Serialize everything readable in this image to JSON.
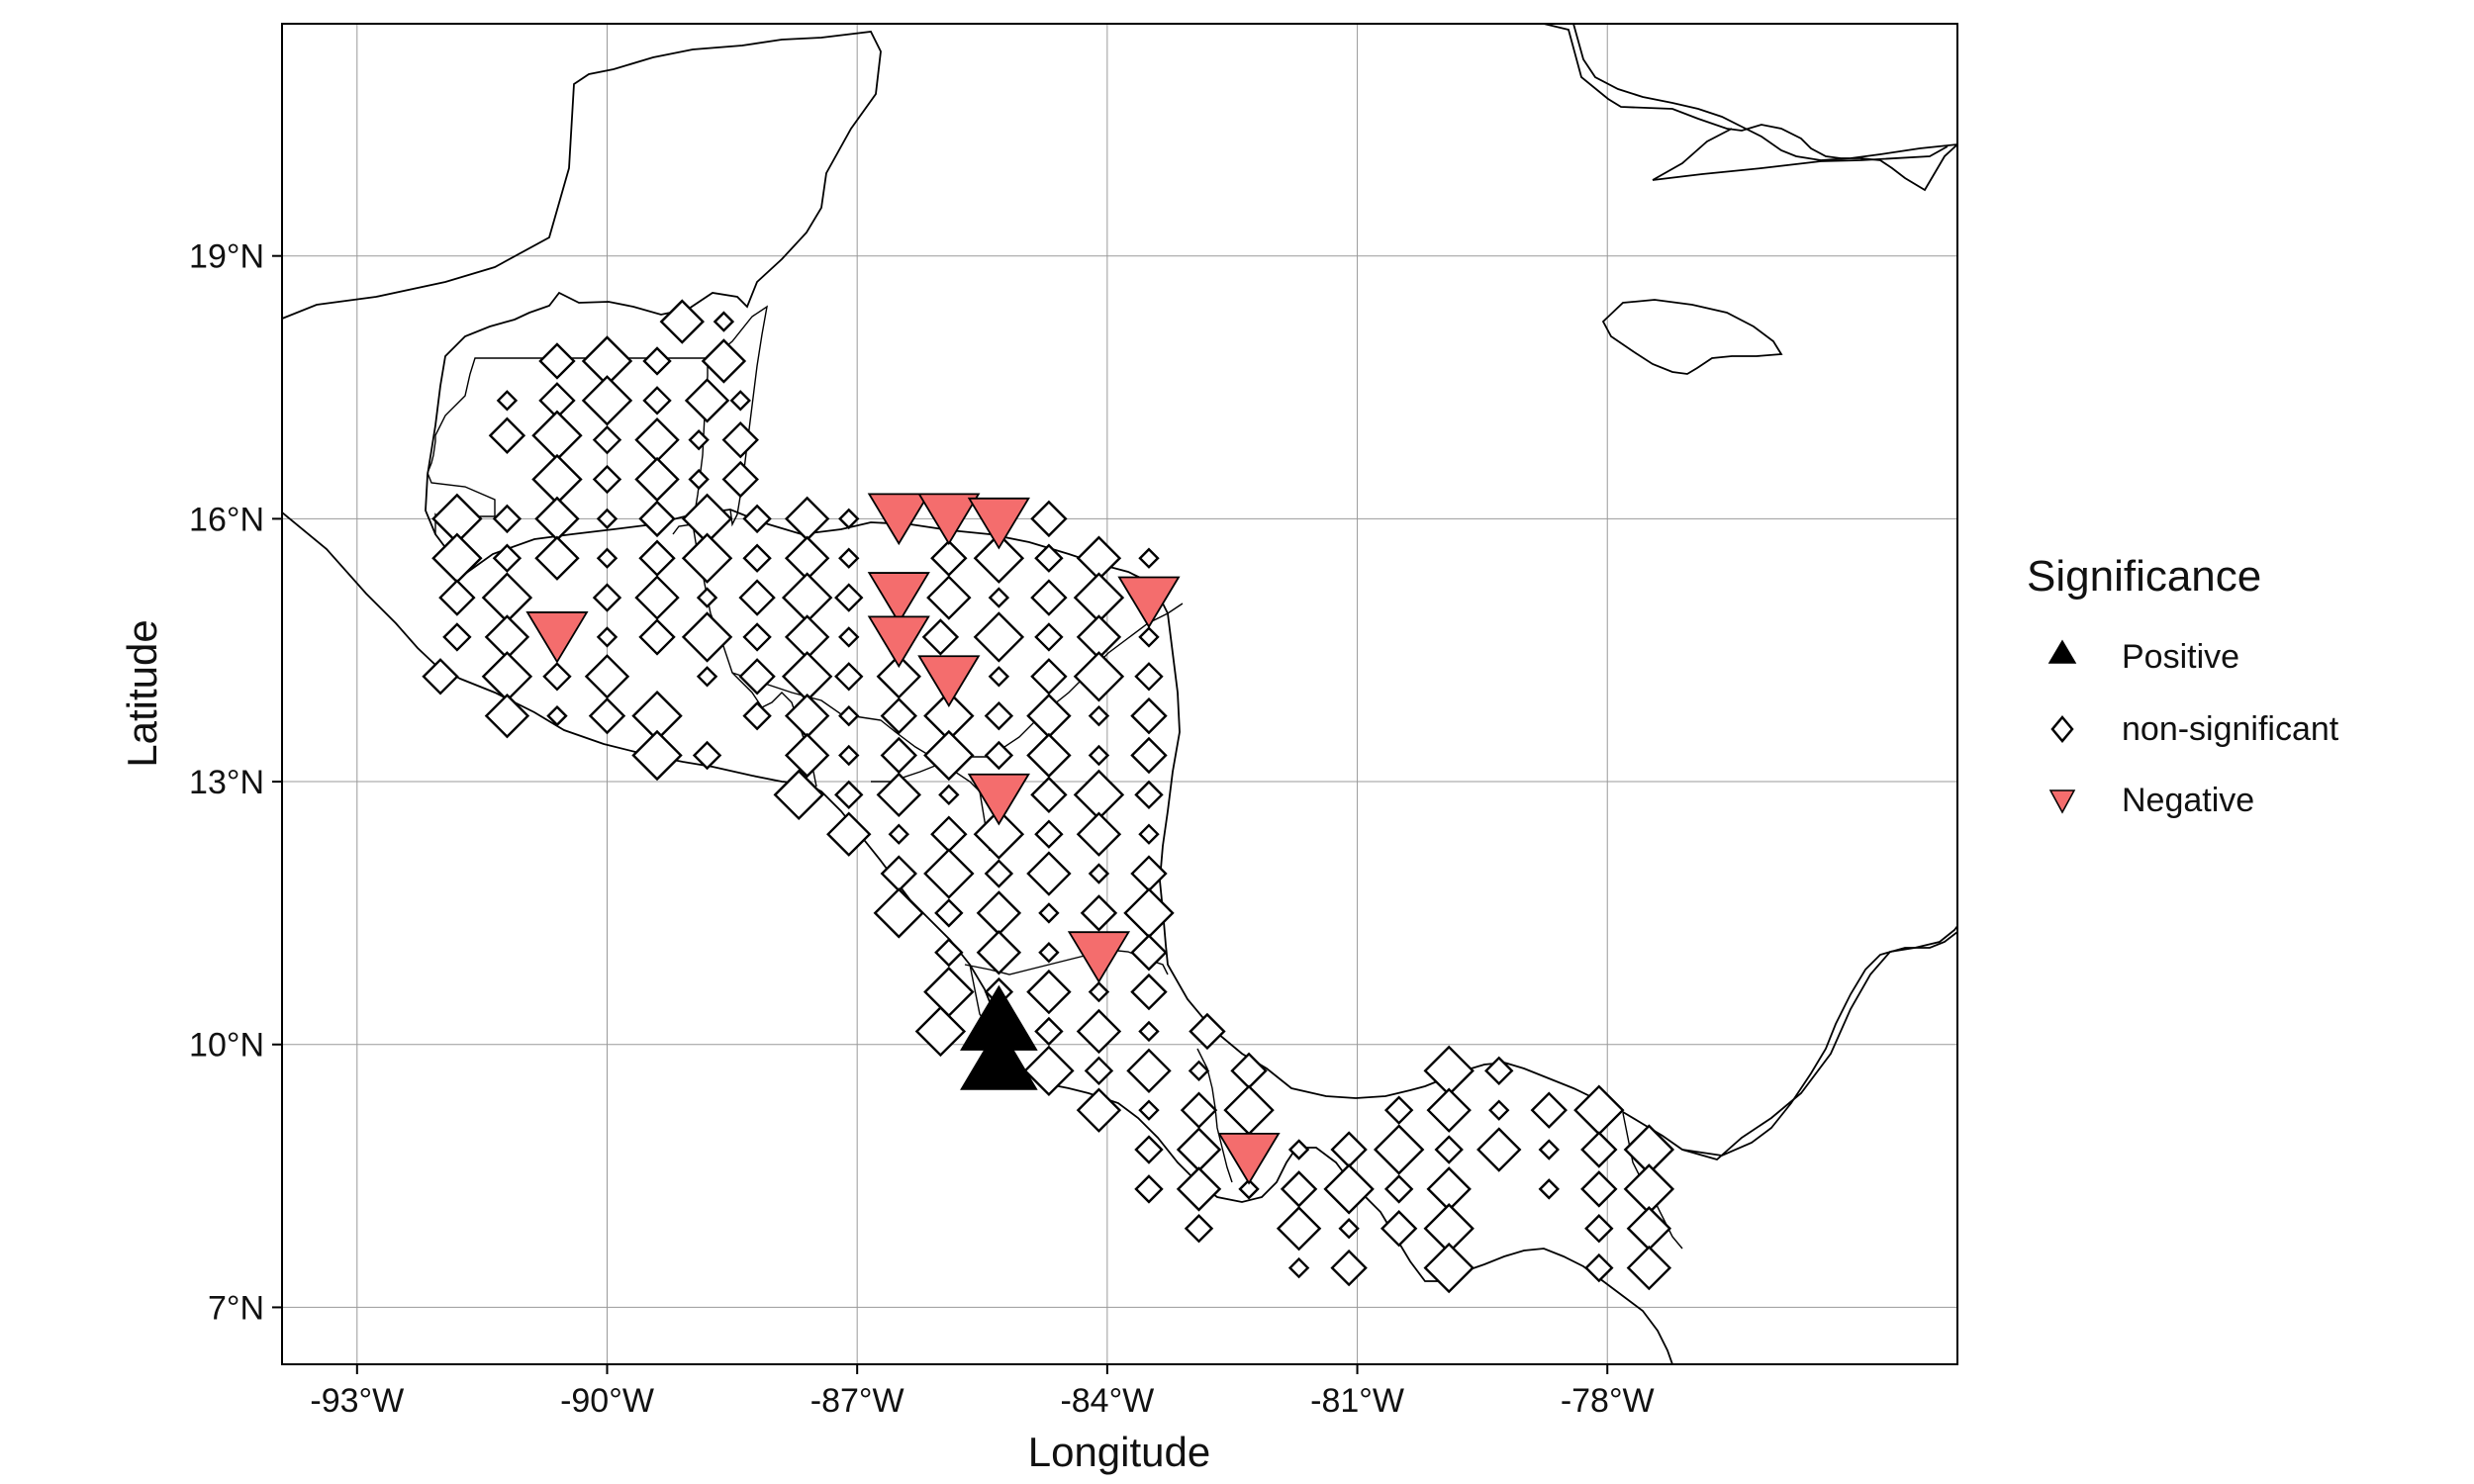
{
  "chart_data": {
    "type": "scatter",
    "xlabel": "Longitude",
    "ylabel": "Latitude",
    "xlim": [
      -93.9,
      -73.8
    ],
    "ylim": [
      6.35,
      21.65
    ],
    "x_ticks": [
      -93,
      -90,
      -87,
      -84,
      -81,
      -78
    ],
    "x_tick_labels": [
      "-93°W",
      "-90°W",
      "-87°W",
      "-84°W",
      "-81°W",
      "-78°W"
    ],
    "y_ticks": [
      7,
      10,
      13,
      16,
      19
    ],
    "y_tick_labels": [
      "7°N",
      "10°N",
      "13°N",
      "16°N",
      "19°N"
    ],
    "grid": true,
    "legend": {
      "title": "Significance",
      "placement": "right",
      "entries": [
        {
          "label": "Positive",
          "marker": "triangle-up",
          "color": "#000000"
        },
        {
          "label": "non-significant",
          "marker": "diamond",
          "color": "#ffffff"
        },
        {
          "label": "Negative",
          "marker": "triangle-down",
          "color": "#f46d6d"
        }
      ]
    },
    "negative_points": [
      [
        -86.5,
        16.0
      ],
      [
        -85.9,
        16.0
      ],
      [
        -85.3,
        15.95
      ],
      [
        -86.5,
        15.1
      ],
      [
        -86.5,
        14.6
      ],
      [
        -85.9,
        14.15
      ],
      [
        -83.5,
        15.05
      ],
      [
        -90.6,
        14.65
      ],
      [
        -85.3,
        12.8
      ],
      [
        -84.1,
        11.0
      ],
      [
        -82.3,
        8.7
      ]
    ],
    "positive_points": [
      [
        -85.3,
        10.3
      ],
      [
        -85.3,
        9.85
      ]
    ],
    "nonsig_points": [
      [
        -89.1,
        18.25
      ],
      [
        -88.6,
        18.25
      ],
      [
        -90.6,
        17.8
      ],
      [
        -90.0,
        17.8
      ],
      [
        -89.4,
        17.8
      ],
      [
        -88.6,
        17.8
      ],
      [
        -91.2,
        17.35
      ],
      [
        -90.6,
        17.35
      ],
      [
        -90.0,
        17.35
      ],
      [
        -89.4,
        17.35
      ],
      [
        -88.8,
        17.35
      ],
      [
        -88.4,
        17.35
      ],
      [
        -91.2,
        16.95
      ],
      [
        -90.6,
        16.95
      ],
      [
        -90.0,
        16.9
      ],
      [
        -89.4,
        16.9
      ],
      [
        -88.9,
        16.9
      ],
      [
        -88.4,
        16.9
      ],
      [
        -90.6,
        16.45
      ],
      [
        -90.0,
        16.45
      ],
      [
        -89.4,
        16.45
      ],
      [
        -88.9,
        16.45
      ],
      [
        -88.4,
        16.45
      ],
      [
        -91.8,
        16.0
      ],
      [
        -91.2,
        16.0
      ],
      [
        -90.6,
        16.0
      ],
      [
        -90.0,
        16.0
      ],
      [
        -89.4,
        16.0
      ],
      [
        -88.8,
        16.0
      ],
      [
        -88.2,
        16.0
      ],
      [
        -87.6,
        16.0
      ],
      [
        -87.1,
        16.0
      ],
      [
        -84.7,
        16.0
      ],
      [
        -91.8,
        15.55
      ],
      [
        -91.2,
        15.55
      ],
      [
        -90.6,
        15.55
      ],
      [
        -90.0,
        15.55
      ],
      [
        -89.4,
        15.55
      ],
      [
        -88.8,
        15.55
      ],
      [
        -88.2,
        15.55
      ],
      [
        -87.6,
        15.55
      ],
      [
        -87.1,
        15.55
      ],
      [
        -85.9,
        15.55
      ],
      [
        -85.3,
        15.55
      ],
      [
        -84.7,
        15.55
      ],
      [
        -84.1,
        15.55
      ],
      [
        -83.5,
        15.55
      ],
      [
        -91.8,
        15.1
      ],
      [
        -91.2,
        15.1
      ],
      [
        -90.0,
        15.1
      ],
      [
        -89.4,
        15.1
      ],
      [
        -88.8,
        15.1
      ],
      [
        -88.2,
        15.1
      ],
      [
        -87.6,
        15.1
      ],
      [
        -87.1,
        15.1
      ],
      [
        -85.9,
        15.1
      ],
      [
        -85.3,
        15.1
      ],
      [
        -84.7,
        15.1
      ],
      [
        -84.1,
        15.1
      ],
      [
        -91.8,
        14.65
      ],
      [
        -91.2,
        14.65
      ],
      [
        -90.0,
        14.65
      ],
      [
        -89.4,
        14.65
      ],
      [
        -88.8,
        14.65
      ],
      [
        -88.2,
        14.65
      ],
      [
        -87.6,
        14.65
      ],
      [
        -87.1,
        14.65
      ],
      [
        -86.0,
        14.65
      ],
      [
        -85.3,
        14.65
      ],
      [
        -84.7,
        14.65
      ],
      [
        -84.1,
        14.65
      ],
      [
        -83.5,
        14.65
      ],
      [
        -92.0,
        14.2
      ],
      [
        -91.2,
        14.2
      ],
      [
        -90.6,
        14.2
      ],
      [
        -90.0,
        14.2
      ],
      [
        -88.8,
        14.2
      ],
      [
        -88.2,
        14.2
      ],
      [
        -87.6,
        14.2
      ],
      [
        -87.1,
        14.2
      ],
      [
        -86.5,
        14.2
      ],
      [
        -85.3,
        14.2
      ],
      [
        -84.7,
        14.2
      ],
      [
        -84.1,
        14.2
      ],
      [
        -83.5,
        14.2
      ],
      [
        -91.2,
        13.75
      ],
      [
        -90.6,
        13.75
      ],
      [
        -90.0,
        13.75
      ],
      [
        -89.4,
        13.75
      ],
      [
        -88.2,
        13.75
      ],
      [
        -87.6,
        13.75
      ],
      [
        -87.1,
        13.75
      ],
      [
        -86.5,
        13.75
      ],
      [
        -85.9,
        13.75
      ],
      [
        -85.3,
        13.75
      ],
      [
        -84.7,
        13.75
      ],
      [
        -84.1,
        13.75
      ],
      [
        -83.5,
        13.75
      ],
      [
        -89.4,
        13.3
      ],
      [
        -88.8,
        13.3
      ],
      [
        -87.6,
        13.3
      ],
      [
        -87.1,
        13.3
      ],
      [
        -86.5,
        13.3
      ],
      [
        -85.9,
        13.3
      ],
      [
        -85.3,
        13.3
      ],
      [
        -84.7,
        13.3
      ],
      [
        -84.1,
        13.3
      ],
      [
        -83.5,
        13.3
      ],
      [
        -87.7,
        12.85
      ],
      [
        -87.1,
        12.85
      ],
      [
        -86.5,
        12.85
      ],
      [
        -85.9,
        12.85
      ],
      [
        -84.7,
        12.85
      ],
      [
        -84.1,
        12.85
      ],
      [
        -83.5,
        12.85
      ],
      [
        -87.1,
        12.4
      ],
      [
        -86.5,
        12.4
      ],
      [
        -85.9,
        12.4
      ],
      [
        -85.3,
        12.4
      ],
      [
        -84.7,
        12.4
      ],
      [
        -84.1,
        12.4
      ],
      [
        -83.5,
        12.4
      ],
      [
        -86.5,
        11.95
      ],
      [
        -85.9,
        11.95
      ],
      [
        -85.3,
        11.95
      ],
      [
        -84.7,
        11.95
      ],
      [
        -84.1,
        11.95
      ],
      [
        -83.5,
        11.95
      ],
      [
        -86.5,
        11.5
      ],
      [
        -85.9,
        11.5
      ],
      [
        -85.3,
        11.5
      ],
      [
        -84.7,
        11.5
      ],
      [
        -84.1,
        11.5
      ],
      [
        -83.5,
        11.5
      ],
      [
        -85.9,
        11.05
      ],
      [
        -85.3,
        11.05
      ],
      [
        -84.7,
        11.05
      ],
      [
        -83.5,
        11.05
      ],
      [
        -85.9,
        10.6
      ],
      [
        -85.3,
        10.6
      ],
      [
        -84.7,
        10.6
      ],
      [
        -84.1,
        10.6
      ],
      [
        -83.5,
        10.6
      ],
      [
        -86.0,
        10.15
      ],
      [
        -84.7,
        10.15
      ],
      [
        -84.1,
        10.15
      ],
      [
        -83.5,
        10.15
      ],
      [
        -82.8,
        10.15
      ],
      [
        -84.7,
        9.7
      ],
      [
        -84.1,
        9.7
      ],
      [
        -83.5,
        9.7
      ],
      [
        -82.9,
        9.7
      ],
      [
        -82.3,
        9.7
      ],
      [
        -79.9,
        9.7
      ],
      [
        -79.3,
        9.7
      ],
      [
        -84.1,
        9.25
      ],
      [
        -83.5,
        9.25
      ],
      [
        -82.9,
        9.25
      ],
      [
        -82.3,
        9.25
      ],
      [
        -80.5,
        9.25
      ],
      [
        -79.9,
        9.25
      ],
      [
        -79.3,
        9.25
      ],
      [
        -78.7,
        9.25
      ],
      [
        -78.1,
        9.25
      ],
      [
        -83.5,
        8.8
      ],
      [
        -82.9,
        8.8
      ],
      [
        -81.7,
        8.8
      ],
      [
        -81.1,
        8.8
      ],
      [
        -80.5,
        8.8
      ],
      [
        -79.9,
        8.8
      ],
      [
        -79.3,
        8.8
      ],
      [
        -78.7,
        8.8
      ],
      [
        -78.1,
        8.8
      ],
      [
        -77.5,
        8.8
      ],
      [
        -83.5,
        8.35
      ],
      [
        -82.9,
        8.35
      ],
      [
        -82.3,
        8.35
      ],
      [
        -81.7,
        8.35
      ],
      [
        -81.1,
        8.35
      ],
      [
        -80.5,
        8.35
      ],
      [
        -79.9,
        8.35
      ],
      [
        -78.7,
        8.35
      ],
      [
        -78.1,
        8.35
      ],
      [
        -77.5,
        8.35
      ],
      [
        -82.9,
        7.9
      ],
      [
        -81.7,
        7.9
      ],
      [
        -81.1,
        7.9
      ],
      [
        -80.5,
        7.9
      ],
      [
        -79.9,
        7.9
      ],
      [
        -78.1,
        7.9
      ],
      [
        -77.5,
        7.9
      ],
      [
        -81.7,
        7.45
      ],
      [
        -81.1,
        7.45
      ],
      [
        -79.9,
        7.45
      ],
      [
        -78.1,
        7.45
      ],
      [
        -77.5,
        7.45
      ]
    ]
  }
}
